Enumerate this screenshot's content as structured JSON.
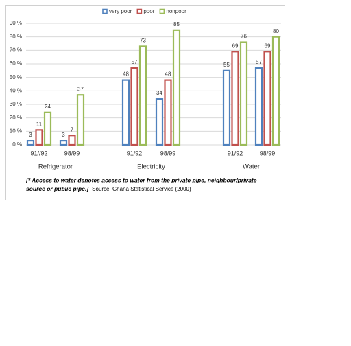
{
  "chart_data": {
    "type": "bar",
    "categories": [
      "91//92",
      "98/99",
      "91/92",
      "98/99",
      "91/92",
      "98/99"
    ],
    "groups": [
      "Refrigerator",
      "Electricity",
      "Water"
    ],
    "series": [
      {
        "name": "very poor",
        "color": "#4f81bd",
        "values": [
          3,
          3,
          48,
          34,
          55,
          57
        ]
      },
      {
        "name": "poor",
        "color": "#c0504d",
        "values": [
          11,
          7,
          57,
          48,
          69,
          69
        ]
      },
      {
        "name": "nonpoor",
        "color": "#9bbb59",
        "values": [
          24,
          37,
          73,
          85,
          76,
          80
        ]
      }
    ],
    "ylim": [
      0,
      90
    ],
    "yticks": [
      {
        "value": 0,
        "label": "0 %"
      },
      {
        "value": 10,
        "label": "10 %"
      },
      {
        "value": 20,
        "label": "20 %"
      },
      {
        "value": 30,
        "label": "30 %"
      },
      {
        "value": 40,
        "label": "40 %"
      },
      {
        "value": 50,
        "label": "50 %"
      },
      {
        "value": 60,
        "label": "60 %"
      },
      {
        "value": 70,
        "label": "70 %"
      },
      {
        "value": 80,
        "label": "80 %"
      },
      {
        "value": 90,
        "label": "90 %"
      }
    ],
    "grid": true,
    "legend": "top",
    "note": [
      "[* Access to water denotes access to water from the private pipe, neighbour/private",
      "source or public pipe.]"
    ],
    "source": "Source: Ghana Statistical Service (2000)"
  }
}
